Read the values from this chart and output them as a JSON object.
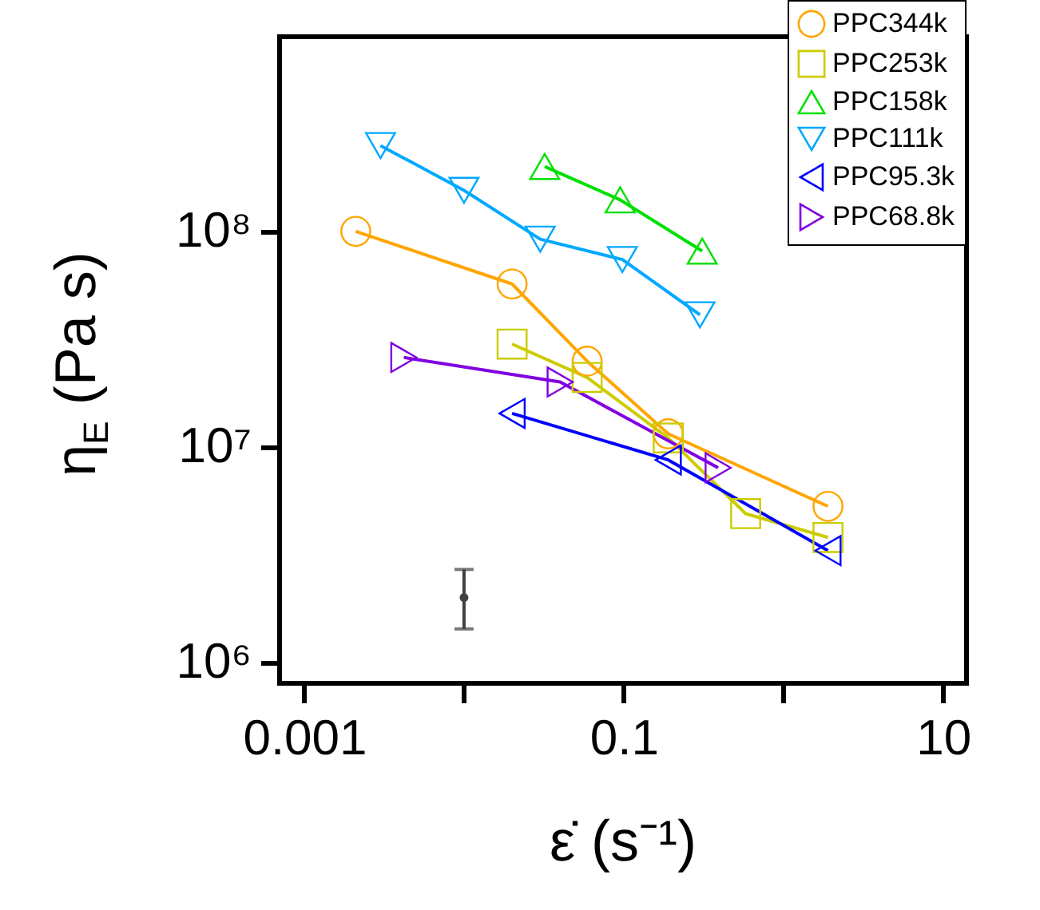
{
  "chart_data": {
    "type": "line",
    "xlabel": "ε̇ (s⁻¹)",
    "ylabel": "η$_{E}$ (Pa s)",
    "log": "xy",
    "grid": false,
    "legend": "top right",
    "xlim": [
      0.0007,
      14
    ],
    "ylim": [
      800000,
      800000000
    ],
    "xticks": [
      0.001,
      {
        "value": 0.01,
        "label": null
      },
      0.1,
      {
        "value": 1,
        "label": null
      },
      10
    ],
    "yticks": [
      {
        "value": 1000000,
        "label": "10⁶"
      },
      {
        "value": 10000000,
        "label": "10⁷"
      },
      {
        "value": 100000000,
        "label": "10⁸"
      }
    ],
    "series": [
      {
        "name": "PPC344k",
        "color": "#ffa500",
        "marker": "circle",
        "x": [
          0.0021,
          0.02,
          0.059,
          0.19,
          1.9
        ],
        "values": [
          100000000,
          57000000,
          25000000,
          11500000,
          5300000
        ]
      },
      {
        "name": "PPC253k",
        "color": "#cccc00",
        "marker": "square",
        "x": [
          0.02,
          0.059,
          0.19,
          0.58,
          1.9
        ],
        "values": [
          30000000,
          21000000,
          11000000,
          4900000,
          3800000
        ]
      },
      {
        "name": "PPC158k",
        "color": "#00e000",
        "marker": "triangle",
        "x": [
          0.032,
          0.095,
          0.31
        ],
        "values": [
          200000000,
          140000000,
          81000000
        ]
      },
      {
        "name": "PPC111k",
        "color": "#00a8ff",
        "marker": "triangle-down",
        "x": [
          0.003,
          0.01,
          0.03,
          0.098,
          0.3
        ],
        "values": [
          250000000,
          155000000,
          92000000,
          74000000,
          41000000
        ]
      },
      {
        "name": "PPC95.3k",
        "color": "#0000ff",
        "marker": "triangle-left",
        "x": [
          0.02,
          0.19,
          1.9
        ],
        "values": [
          14300000,
          8700000,
          3300000
        ]
      },
      {
        "name": "PPC68.8k",
        "color": "#8000e0",
        "marker": "triangle-right",
        "x": [
          0.0042,
          0.04,
          0.39
        ],
        "values": [
          26000000,
          20000000,
          8000000
        ]
      },
      {
        "type": "scatter",
        "color": "#404040",
        "marker": "circle",
        "x": [
          0.01
        ],
        "values": [
          2000000
        ],
        "errors": [
          [
            1430000,
            2700000
          ]
        ]
      }
    ]
  }
}
